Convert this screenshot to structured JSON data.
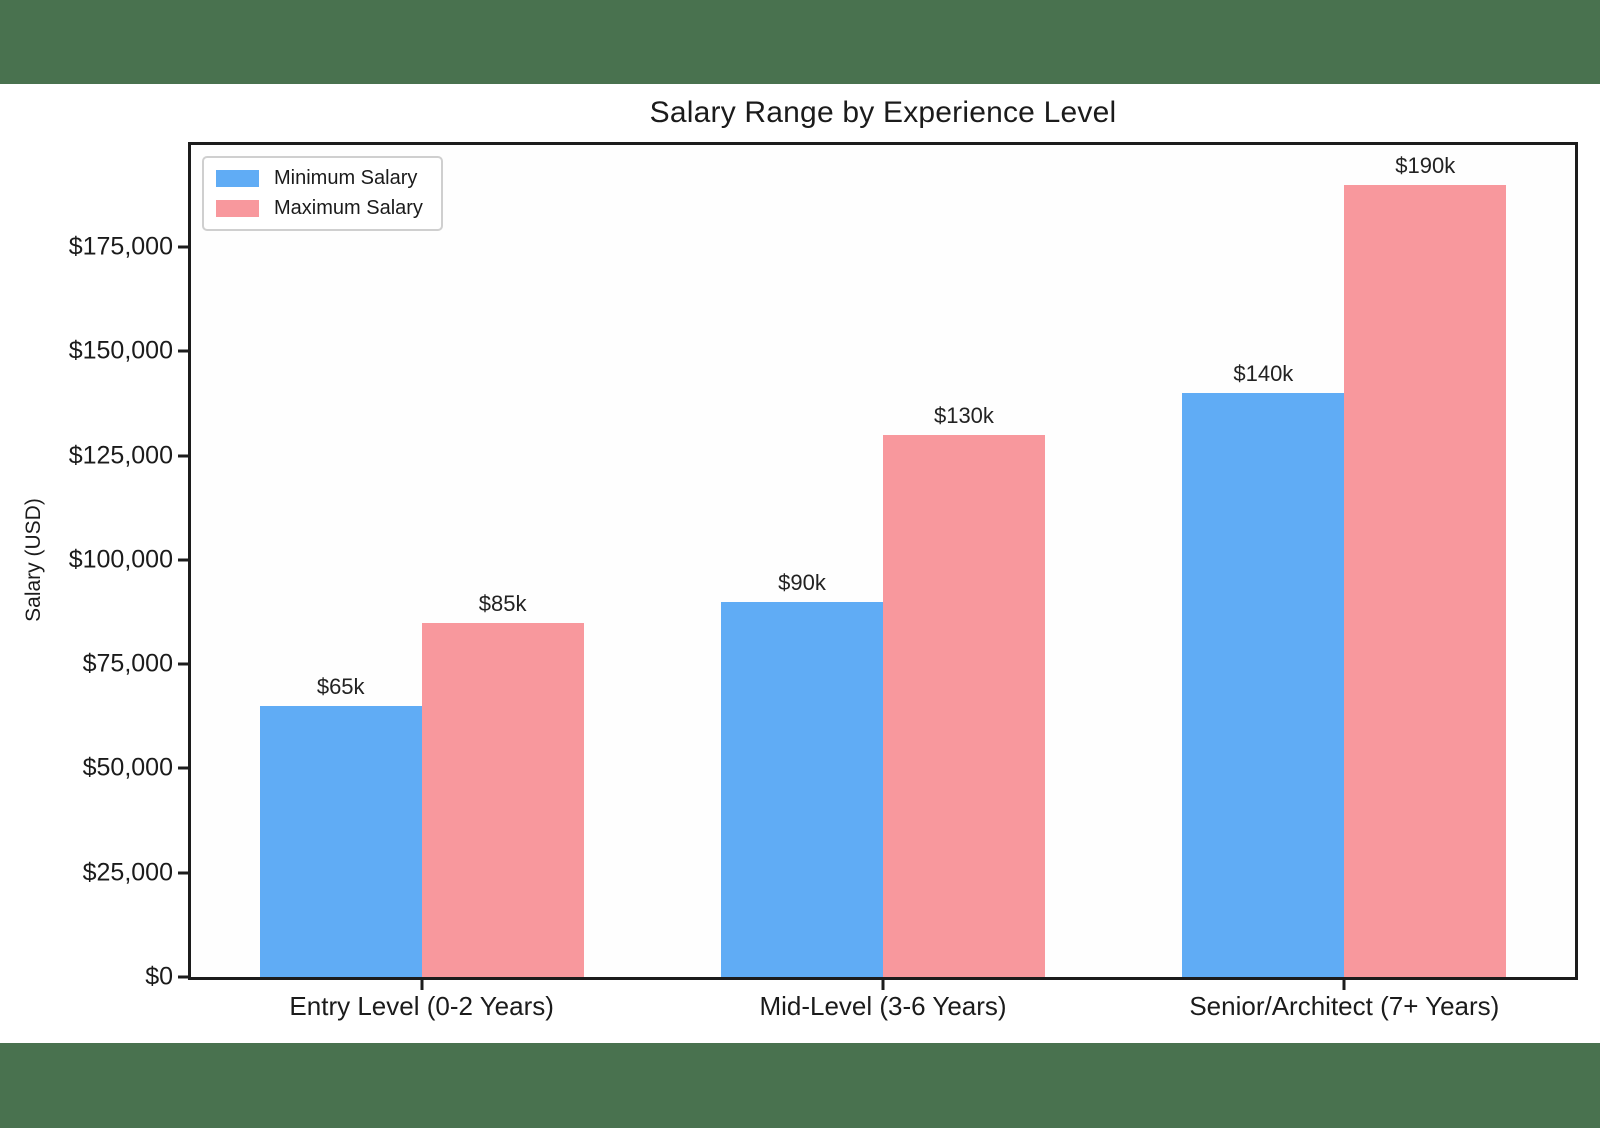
{
  "page": {
    "letterbox_color": "#49724f",
    "canvas_color": "#ffffff",
    "text_color": "#1b1b1b"
  },
  "chart_data": {
    "type": "bar",
    "title": "Salary Range by Experience Level",
    "xlabel": "",
    "ylabel": "Salary (USD)",
    "categories": [
      "Entry Level (0-2 Years)",
      "Mid-Level (3-6 Years)",
      "Senior/Architect (7+ Years)"
    ],
    "series": [
      {
        "name": "Minimum Salary",
        "color": "#60acf5",
        "values": [
          65000,
          90000,
          140000
        ],
        "value_labels": [
          "$65k",
          "$90k",
          "$140k"
        ]
      },
      {
        "name": "Maximum Salary",
        "color": "#f8989d",
        "values": [
          85000,
          130000,
          190000
        ],
        "value_labels": [
          "$85k",
          "$130k",
          "$190k"
        ]
      }
    ],
    "y_ticks": [
      {
        "value": 0,
        "label": "$0"
      },
      {
        "value": 25000,
        "label": "$25,000"
      },
      {
        "value": 50000,
        "label": "$50,000"
      },
      {
        "value": 75000,
        "label": "$75,000"
      },
      {
        "value": 100000,
        "label": "$100,000"
      },
      {
        "value": 125000,
        "label": "$125,000"
      },
      {
        "value": 150000,
        "label": "$150,000"
      },
      {
        "value": 175000,
        "label": "$175,000"
      }
    ],
    "ylim": [
      0,
      199500
    ],
    "bar_width_pct": 11.7,
    "grid": false,
    "legend_position": "upper left"
  }
}
